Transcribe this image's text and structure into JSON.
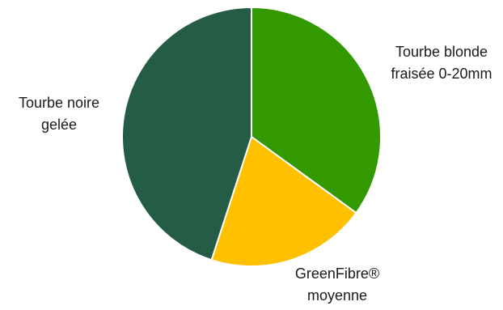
{
  "chart_data": {
    "type": "pie",
    "title": "",
    "start_angle_deg": 0,
    "direction": "clockwise",
    "slices": [
      {
        "label": "Tourbe blonde\nfraisée 0-20mm",
        "value": 35,
        "color": "#339900"
      },
      {
        "label": "GreenFibre®\nmoyenne",
        "value": 20,
        "color": "#FFC000"
      },
      {
        "label": "Tourbe noire\ngelée",
        "value": 45,
        "color": "#245C45"
      }
    ],
    "separator_color": "#FFFFFF",
    "legend": "none"
  }
}
